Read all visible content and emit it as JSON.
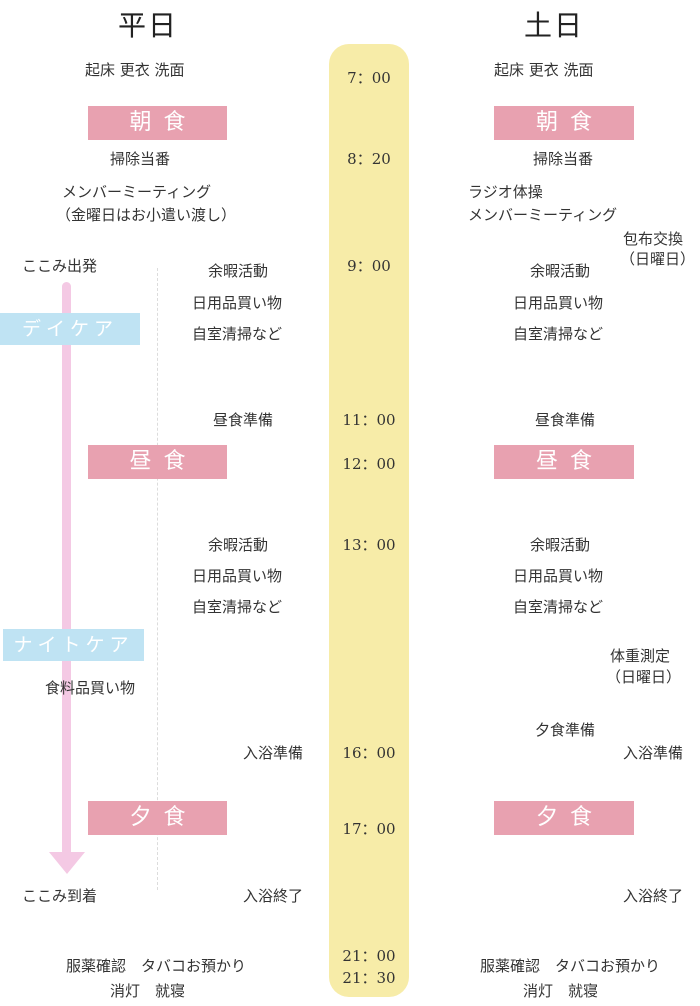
{
  "colors": {
    "timeline": "#f7eca8",
    "meal": "#e8a1b0",
    "care": "#bfe3f3",
    "arrow": "#f4c9e4"
  },
  "headers": {
    "weekday": "平日",
    "weekend": "土日"
  },
  "times": [
    "7：00",
    "8：20",
    "9：00",
    "11：00",
    "12：00",
    "13：00",
    "16：00",
    "17：00",
    "21：00",
    "21：30"
  ],
  "meals": {
    "breakfast": "朝食",
    "lunch": "昼食",
    "dinner": "夕食"
  },
  "care": {
    "day": "デイケア",
    "night": "ナイトケア"
  },
  "weekday": {
    "wake": "起床 更衣 洗面",
    "cleaning_duty": "掃除当番",
    "meeting_1": "メンバーミーティング",
    "meeting_2": "（金曜日はお小遣い渡し）",
    "kokomi_depart": "ここみ出発",
    "leisure_am": "余暇活動",
    "shopping_am": "日用品買い物",
    "room_cleaning_am": "自室清掃など",
    "lunch_prep": "昼食準備",
    "leisure_pm": "余暇活動",
    "shopping_pm": "日用品買い物",
    "room_cleaning_pm": "自室清掃など",
    "grocery": "食料品買い物",
    "bath_prep": "入浴準備",
    "kokomi_arrive": "ここみ到着",
    "bath_end": "入浴終了",
    "medication": "服薬確認　タバコお預かり",
    "lights_out": "消灯　就寝"
  },
  "weekend": {
    "wake": "起床 更衣 洗面",
    "cleaning_duty": "掃除当番",
    "radio_exercise": "ラジオ体操",
    "meeting": "メンバーミーティング",
    "cloth_change_1": "包布交換",
    "cloth_change_2": "（日曜日）",
    "leisure_am": "余暇活動",
    "shopping_am": "日用品買い物",
    "room_cleaning_am": "自室清掃など",
    "lunch_prep": "昼食準備",
    "leisure_pm": "余暇活動",
    "shopping_pm": "日用品買い物",
    "room_cleaning_pm": "自室清掃など",
    "weight_1": "体重測定",
    "weight_2": "（日曜日）",
    "dinner_prep": "夕食準備",
    "bath_prep": "入浴準備",
    "bath_end": "入浴終了",
    "medication": "服薬確認　タバコお預かり",
    "lights_out": "消灯　就寝"
  }
}
